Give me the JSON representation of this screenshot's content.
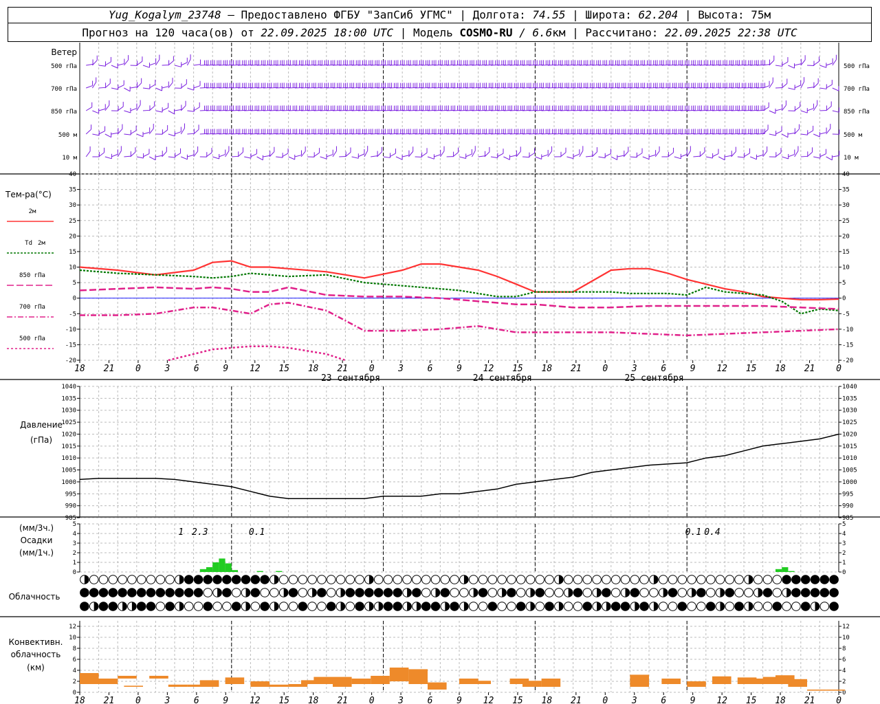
{
  "header": {
    "station": "Yug_Kogalym_23748",
    "provider": " — Предоставлено ФГБУ \"ЗапСиб УГМС\" | Долгота: ",
    "lon": "74.55",
    "lat_label": " | Широта: ",
    "lat": "62.204",
    "alt_label": " | Высота: 75м",
    "forecast_label": "Прогноз на 120 часа(ов) от ",
    "forecast_start": "22.09.2025 18:00 UTC",
    "model_label": "  | Модель ",
    "model": "COSMO-RU",
    "model_res": " / 6.6",
    "model_unit": "км",
    "calc_label": " | Рассчитано: ",
    "calc_time": "22.09.2025 22:38 UTC"
  },
  "panels": {
    "wind": {
      "title": "Ветер",
      "levels": [
        "500 гПа",
        "700 гПа",
        "850 гПа",
        "500 м",
        "10  м"
      ]
    },
    "temp": {
      "title": "Тем-ра(°C)",
      "legend": [
        {
          "label": "2м",
          "color": "#ff3333",
          "dash": ""
        },
        {
          "label": "Td 2м",
          "color": "#007700",
          "dash": "3,2"
        },
        {
          "label": "850 гПа",
          "color": "#e0208a",
          "dash": "10,4"
        },
        {
          "label": "700 гПа",
          "color": "#e0208a",
          "dash": "8,3,2,3"
        },
        {
          "label": "500 гПа",
          "color": "#e0208a",
          "dash": "3,3"
        }
      ]
    },
    "pressure": {
      "title": "Давление",
      "unit": "(гПа)"
    },
    "precip": {
      "unit_top": "(мм/3ч.)",
      "title": "Осадки",
      "unit_bottom": "(мм/1ч.)"
    },
    "cloud": {
      "title": "Облачность"
    },
    "conv": {
      "title1": "Конвективн.",
      "title2": "облачность",
      "unit": "(км)"
    }
  },
  "x_ticks": [
    "18",
    "21",
    "0",
    "3",
    "6",
    "9",
    "12",
    "15",
    "18",
    "21",
    "0",
    "3",
    "6",
    "9",
    "12",
    "15",
    "18",
    "21",
    "0",
    "3",
    "6",
    "9",
    "12",
    "15",
    "18",
    "21",
    "0"
  ],
  "dates": [
    "23 сентября",
    "24 сентября",
    "25 сентября"
  ],
  "precip_annotations": [
    {
      "hour": 16,
      "text": "1"
    },
    {
      "hour": 19,
      "text": "2.3"
    },
    {
      "hour": 28,
      "text": "0.1"
    },
    {
      "hour": 97,
      "text": "0.1"
    },
    {
      "hour": 100,
      "text": "0.4"
    }
  ],
  "chart_data": [
    {
      "type": "line",
      "title": "Тем-ра(°C)",
      "ylim": [
        -20,
        40
      ],
      "x_unit": "hours from 22.09.2025 18:00 UTC",
      "series": [
        {
          "name": "2м",
          "x": [
            0,
            6,
            12,
            18,
            21,
            24,
            27,
            30,
            33,
            39,
            45,
            51,
            54,
            57,
            60,
            63,
            66,
            69,
            72,
            78,
            84,
            87,
            90,
            93,
            96,
            99,
            102,
            105,
            108,
            111,
            114,
            117,
            120
          ],
          "values": [
            10,
            9,
            7.5,
            9,
            11.5,
            12,
            10,
            10,
            9.5,
            8.5,
            6.5,
            9,
            11,
            11,
            10,
            9,
            7,
            4.5,
            2,
            2,
            9,
            9.5,
            9.5,
            8,
            6,
            4.5,
            3,
            2,
            0.5,
            0,
            -0.5,
            -0.5,
            -0.3
          ]
        },
        {
          "name": "Td 2м",
          "x": [
            0,
            6,
            12,
            18,
            21,
            24,
            27,
            30,
            33,
            39,
            45,
            51,
            54,
            57,
            60,
            63,
            66,
            69,
            72,
            78,
            84,
            87,
            90,
            93,
            96,
            99,
            102,
            105,
            108,
            111,
            114,
            117,
            120
          ],
          "values": [
            9,
            8,
            7.5,
            7,
            6.5,
            7,
            8,
            7.5,
            7,
            7.5,
            5,
            4,
            3.5,
            3,
            2.5,
            1.5,
            0.5,
            0.5,
            2,
            2,
            2,
            1.5,
            1.5,
            1.5,
            1,
            3.5,
            2,
            1.5,
            1,
            -1,
            -5,
            -3.5,
            -4
          ]
        },
        {
          "name": "850 гПа",
          "x": [
            0,
            6,
            12,
            18,
            21,
            24,
            27,
            30,
            33,
            39,
            45,
            51,
            57,
            63,
            69,
            72,
            78,
            84,
            90,
            96,
            102,
            108,
            114,
            120
          ],
          "values": [
            2.5,
            3,
            3.5,
            3,
            3.5,
            3,
            2,
            2,
            3.5,
            1,
            0.5,
            0.5,
            0,
            -1,
            -2,
            -2,
            -3,
            -3,
            -2.5,
            -2.5,
            -2.5,
            -2.5,
            -3,
            -3.5
          ]
        },
        {
          "name": "700 гПа",
          "x": [
            0,
            6,
            12,
            18,
            21,
            24,
            27,
            30,
            33,
            39,
            45,
            51,
            57,
            63,
            69,
            72,
            78,
            84,
            90,
            96,
            102,
            108,
            114,
            120
          ],
          "values": [
            -5.5,
            -5.5,
            -5,
            -3,
            -3,
            -4,
            -5,
            -2,
            -1.5,
            -4,
            -10.5,
            -10.5,
            -10,
            -9,
            -11,
            -11,
            -11,
            -11,
            -11.5,
            -12,
            -11.5,
            -11,
            -10.5,
            -10
          ]
        },
        {
          "name": "500 гПа",
          "x": [
            14,
            18,
            21,
            24,
            27,
            30,
            33,
            36,
            39,
            42
          ],
          "values": [
            -20,
            -18,
            -16.5,
            -16,
            -15.5,
            -15.5,
            -16,
            -17,
            -18,
            -20
          ]
        }
      ]
    },
    {
      "type": "line",
      "title": "Давление",
      "ylim": [
        985,
        1040
      ],
      "x_unit": "hours from 22.09.2025 18:00 UTC",
      "series": [
        {
          "name": "",
          "x": [
            0,
            3,
            6,
            9,
            12,
            15,
            18,
            21,
            24,
            27,
            30,
            33,
            36,
            39,
            42,
            45,
            48,
            51,
            54,
            57,
            60,
            63,
            66,
            69,
            72,
            75,
            78,
            81,
            84,
            87,
            90,
            93,
            96,
            99,
            102,
            105,
            108,
            111,
            114,
            117,
            120
          ],
          "values": [
            1001,
            1001.5,
            1001.5,
            1001.5,
            1001.5,
            1001,
            1000,
            999,
            998,
            996,
            994,
            993,
            993,
            993,
            993,
            993,
            994,
            994,
            994,
            995,
            995,
            996,
            997,
            999,
            1000,
            1001,
            1002,
            1004,
            1005,
            1006,
            1007,
            1007.5,
            1008,
            1010,
            1011,
            1013,
            1015,
            1016,
            1017,
            1018,
            1020
          ]
        }
      ]
    },
    {
      "type": "bar",
      "title": "Осадки",
      "ylim": [
        0,
        5
      ],
      "x_unit": "hour",
      "values": [
        [
          19,
          0.3
        ],
        [
          20,
          0.5
        ],
        [
          21,
          1.0
        ],
        [
          22,
          1.4
        ],
        [
          23,
          0.9
        ],
        [
          24,
          0.2
        ],
        [
          28,
          0.1
        ],
        [
          31,
          0.1
        ],
        [
          110,
          0.3
        ],
        [
          111,
          0.5
        ],
        [
          112,
          0.1
        ]
      ]
    },
    {
      "type": "bar",
      "title": "Конвективн. облачность",
      "ylim": [
        0,
        13
      ],
      "x_unit": "hour",
      "values": [
        [
          0,
          1.5,
          2.0
        ],
        [
          1,
          1.5,
          1.0
        ],
        [
          3,
          1.5,
          1.0
        ],
        [
          6,
          2.5,
          0.5
        ],
        [
          7,
          1.0,
          0.2
        ],
        [
          11,
          2.5,
          0.5
        ],
        [
          14,
          1.0,
          0.4
        ],
        [
          17,
          1.0,
          0.4
        ],
        [
          19,
          1.0,
          1.2
        ],
        [
          23,
          1.5,
          1.2
        ],
        [
          27,
          1.0,
          1.0
        ],
        [
          30,
          1.0,
          0.4
        ],
        [
          33,
          1.0,
          0.5
        ],
        [
          35,
          1.5,
          0.7
        ],
        [
          37,
          1.5,
          1.3
        ],
        [
          40,
          1.0,
          1.8
        ],
        [
          43,
          1.5,
          1.0
        ],
        [
          46,
          1.5,
          1.5
        ],
        [
          49,
          2.0,
          2.5
        ],
        [
          52,
          1.5,
          2.7
        ],
        [
          55,
          0.5,
          1.3
        ],
        [
          60,
          1.5,
          1.0
        ],
        [
          62,
          1.5,
          0.6
        ],
        [
          68,
          1.5,
          1.0
        ],
        [
          70,
          1.0,
          1.1
        ],
        [
          73,
          1.0,
          1.5
        ],
        [
          87,
          1.0,
          2.2
        ],
        [
          92,
          1.5,
          1.0
        ],
        [
          96,
          1.0,
          1.0
        ],
        [
          100,
          1.5,
          1.4
        ],
        [
          104,
          1.5,
          1.2
        ],
        [
          106,
          1.5,
          1.0
        ],
        [
          108,
          1.5,
          1.3
        ],
        [
          110,
          1.5,
          1.6
        ],
        [
          112,
          1.0,
          1.4
        ],
        [
          115,
          0.3,
          0.2
        ],
        [
          118,
          0.3,
          0.2
        ]
      ]
    }
  ]
}
